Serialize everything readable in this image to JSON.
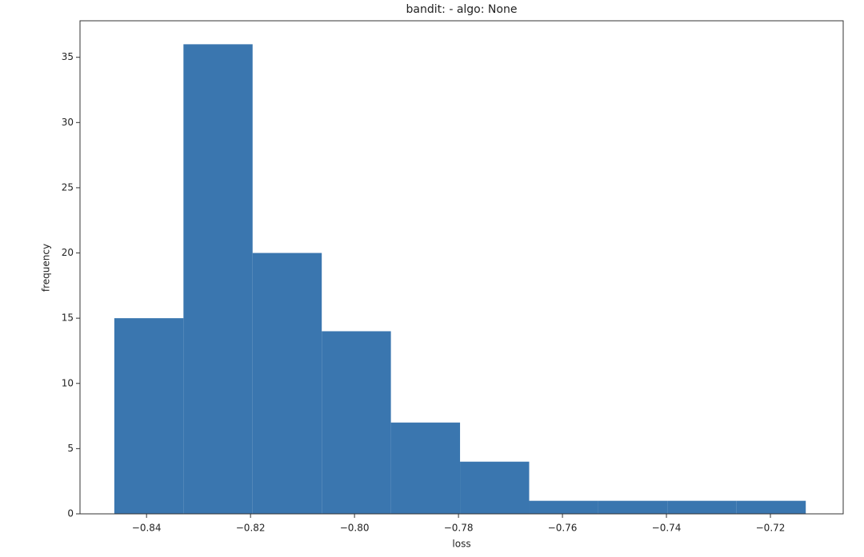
{
  "chart_data": {
    "type": "histogram",
    "title": "bandit: - algo: None",
    "xlabel": "loss",
    "ylabel": "frequency",
    "bins": [
      -0.8462,
      -0.8329,
      -0.8196,
      -0.8063,
      -0.793,
      -0.7797,
      -0.7664,
      -0.7531,
      -0.7398,
      -0.7265,
      -0.7132
    ],
    "counts": [
      15,
      36,
      20,
      14,
      7,
      4,
      1,
      1,
      1,
      1
    ],
    "color": "#3a76af",
    "xlim": [
      -0.8528,
      -0.706
    ],
    "ylim": [
      0,
      37.8
    ],
    "xticks": [
      {
        "value": -0.84,
        "label": "−0.84"
      },
      {
        "value": -0.82,
        "label": "−0.82"
      },
      {
        "value": -0.8,
        "label": "−0.80"
      },
      {
        "value": -0.78,
        "label": "−0.78"
      },
      {
        "value": -0.76,
        "label": "−0.76"
      },
      {
        "value": -0.74,
        "label": "−0.74"
      },
      {
        "value": -0.72,
        "label": "−0.72"
      }
    ],
    "yticks": [
      0,
      5,
      10,
      15,
      20,
      25,
      30,
      35
    ]
  }
}
